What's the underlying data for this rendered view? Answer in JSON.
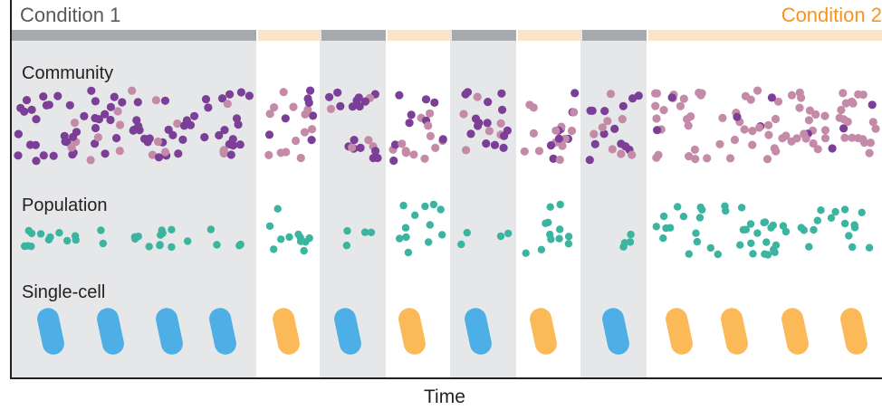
{
  "conditions": {
    "condition1_label": "Condition 1",
    "condition2_label": "Condition 2",
    "condition1_color": "#a7a9ac",
    "condition2_color": "#fde3c8",
    "condition1_background": "#e6e7e8",
    "condition2_text_color": "#f7941d"
  },
  "timeline": {
    "segments": [
      "condition1",
      "condition2",
      "condition1",
      "condition2",
      "condition1",
      "condition2",
      "condition1",
      "condition2"
    ]
  },
  "rows": {
    "community_label": "Community",
    "population_label": "Population",
    "single_cell_label": "Single-cell"
  },
  "axis": {
    "x_label": "Time"
  },
  "colors": {
    "purple": "#7b3f98",
    "pink": "#c48ba8",
    "teal": "#3bb4a0",
    "blue_cell": "#4eaee6",
    "orange_cell": "#fbb957"
  }
}
